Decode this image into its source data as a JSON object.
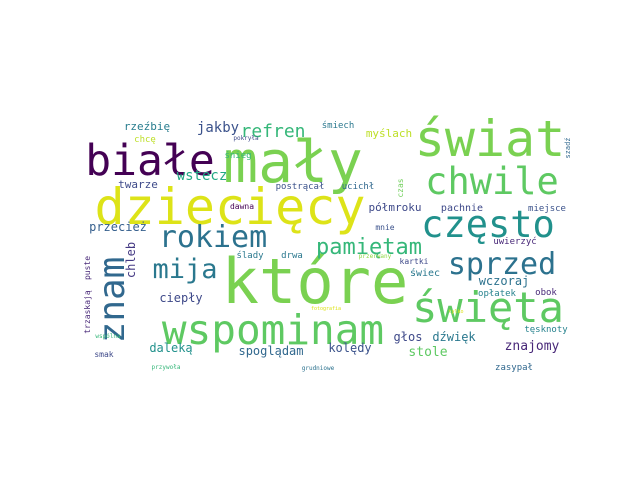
{
  "words": [
    {
      "text": "mały",
      "color": "#7ad151"
    },
    {
      "text": "które",
      "color": "#7ad151"
    },
    {
      "text": "dziecięcy",
      "color": "#dde318"
    },
    {
      "text": "świat",
      "color": "#7ad151"
    },
    {
      "text": "białe",
      "color": "#440154"
    },
    {
      "text": "wspominam",
      "color": "#5ec962"
    },
    {
      "text": "święta",
      "color": "#5ec962"
    },
    {
      "text": "chwile",
      "color": "#5ec962"
    },
    {
      "text": "często",
      "color": "#21918c"
    },
    {
      "text": "znam",
      "color": "#31688e"
    },
    {
      "text": "rokiem",
      "color": "#2c728e"
    },
    {
      "text": "sprzed",
      "color": "#2c728e"
    },
    {
      "text": "mija",
      "color": "#2a788e"
    },
    {
      "text": "pamiętam",
      "color": "#35b779"
    },
    {
      "text": "refren",
      "color": "#35b779"
    },
    {
      "text": "wstecz",
      "color": "#22a884"
    },
    {
      "text": "jakby",
      "color": "#3b528b"
    },
    {
      "text": "rzeźbię",
      "color": "#287d8e"
    },
    {
      "text": "chcę",
      "color": "#bddf26"
    },
    {
      "text": "śnieg",
      "color": "#35b779"
    },
    {
      "text": "śmiech",
      "color": "#2a788e"
    },
    {
      "text": "myślach",
      "color": "#bddf26"
    },
    {
      "text": "twarze",
      "color": "#3e4a89"
    },
    {
      "text": "postrącał",
      "color": "#3b528b"
    },
    {
      "text": "ucichł",
      "color": "#31688e"
    },
    {
      "text": "czas",
      "color": "#6ece58"
    },
    {
      "text": "półmroku",
      "color": "#3e4989"
    },
    {
      "text": "pachnie",
      "color": "#3e4989"
    },
    {
      "text": "miejsce",
      "color": "#3b528b"
    },
    {
      "text": "szadź",
      "color": "#31688e"
    },
    {
      "text": "dawna",
      "color": "#440154"
    },
    {
      "text": "przecież",
      "color": "#355f8d"
    },
    {
      "text": "chleb",
      "color": "#443983"
    },
    {
      "text": "mnie",
      "color": "#3b528b"
    },
    {
      "text": "uwierzyć",
      "color": "#482878"
    },
    {
      "text": "drwa",
      "color": "#2a788e"
    },
    {
      "text": "ślady",
      "color": "#2a788e"
    },
    {
      "text": "przerwany",
      "color": "#8fd744"
    },
    {
      "text": "kartki",
      "color": "#3e4989"
    },
    {
      "text": "świec",
      "color": "#2a788e"
    },
    {
      "text": "wczoraj",
      "color": "#2c728e"
    },
    {
      "text": "opłatek",
      "color": "#26828e"
    },
    {
      "text": "obok",
      "color": "#482878"
    },
    {
      "text": "puste",
      "color": "#482878"
    },
    {
      "text": "trzaskają",
      "color": "#482878"
    },
    {
      "text": "ciepły",
      "color": "#3e4989"
    },
    {
      "text": "fotografia",
      "color": "#dde318"
    },
    {
      "text": "głos",
      "color": "#3e4989"
    },
    {
      "text": "dźwięk",
      "color": "#2a788e"
    },
    {
      "text": "znajomy",
      "color": "#482878"
    },
    {
      "text": "tęsknoty",
      "color": "#26828e"
    },
    {
      "text": "daleką",
      "color": "#21918c"
    },
    {
      "text": "spoglądam",
      "color": "#31688e"
    },
    {
      "text": "kolędy",
      "color": "#3b528b"
    },
    {
      "text": "stole",
      "color": "#5ec962"
    },
    {
      "text": "wspólna",
      "color": "#35b779"
    },
    {
      "text": "smak",
      "color": "#3e4989"
    },
    {
      "text": "przywoła",
      "color": "#35b779"
    },
    {
      "text": "grudniowe",
      "color": "#2c728e"
    },
    {
      "text": "zasypał",
      "color": "#31688e"
    },
    {
      "text": "tylko",
      "color": "#dde318"
    },
    {
      "text": "pokryła",
      "color": "#3e4989"
    }
  ]
}
